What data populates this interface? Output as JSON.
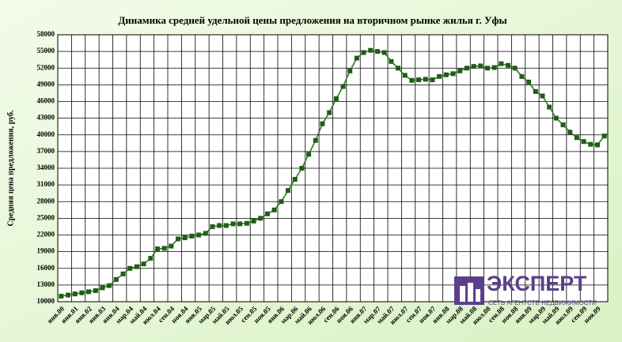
{
  "chart_data": {
    "type": "line",
    "title": "Динамика средней удельной цены предложения на вторичном рынке жилья г. Уфы",
    "y_label": "Средняя цена предложения, руб.",
    "categories": [
      "янв.00",
      null,
      "янв.01",
      null,
      "янв.02",
      null,
      "янв.03",
      null,
      "янв.04",
      null,
      "мар.04",
      null,
      "май.04",
      null,
      "июл.04",
      null,
      "сен.04",
      null,
      "ноя.04",
      null,
      "янв.05",
      null,
      "мар.05",
      null,
      "май.05",
      null,
      "июл.05",
      null,
      "сен.05",
      null,
      "ноя.05",
      null,
      "янв.06",
      null,
      "мар.06",
      null,
      "май.06",
      null,
      "июл.06",
      null,
      "сен.06",
      null,
      "ноя.06",
      null,
      "янв.07",
      null,
      "мар.07",
      null,
      "май.07",
      null,
      "июл.07",
      null,
      "сен.07",
      null,
      "ноя.07",
      null,
      "янв.08",
      null,
      "мар.08",
      null,
      "май.08",
      null,
      "июл.08",
      null,
      "сен.08",
      null,
      "ноя.08",
      null,
      "янв.09",
      null,
      "мар.09",
      null,
      "май.09",
      null,
      "июл.09",
      null,
      "сен.09",
      null,
      "ноя.09",
      null
    ],
    "series": [
      {
        "name": "Средняя цена",
        "color": "#2f7d1f",
        "marker_color": "#1e5e14",
        "values": [
          11000,
          11200,
          11400,
          11600,
          11800,
          12000,
          12500,
          12900,
          14000,
          15000,
          16000,
          16300,
          16800,
          17800,
          19500,
          19600,
          20000,
          21300,
          21500,
          21800,
          22000,
          22300,
          23500,
          23700,
          23700,
          24000,
          24000,
          24100,
          24500,
          25000,
          25800,
          26500,
          28000,
          30000,
          32000,
          34000,
          36500,
          39000,
          42000,
          44000,
          46500,
          48700,
          51500,
          53800,
          54800,
          55200,
          55000,
          54800,
          53200,
          52000,
          50700,
          49800,
          49900,
          50000,
          49900,
          50500,
          50800,
          51000,
          51500,
          52000,
          52300,
          52400,
          52000,
          52100,
          52800,
          52500,
          52000,
          50500,
          49500,
          47800,
          47000,
          45000,
          43000,
          41800,
          40500,
          39500,
          38800,
          38300,
          38200,
          39800
        ]
      }
    ],
    "ylim": [
      10000,
      58000
    ],
    "yticks": [
      10000,
      13000,
      16000,
      19000,
      22000,
      25000,
      28000,
      31000,
      34000,
      37000,
      40000,
      43000,
      46000,
      49000,
      52000,
      55000,
      58000
    ],
    "grid": true
  },
  "logo": {
    "name": "ЭКСПЕРТ",
    "tagline": "СЕТЬ АГЕНТСТВ НЕДВИЖИМОСТИ"
  }
}
